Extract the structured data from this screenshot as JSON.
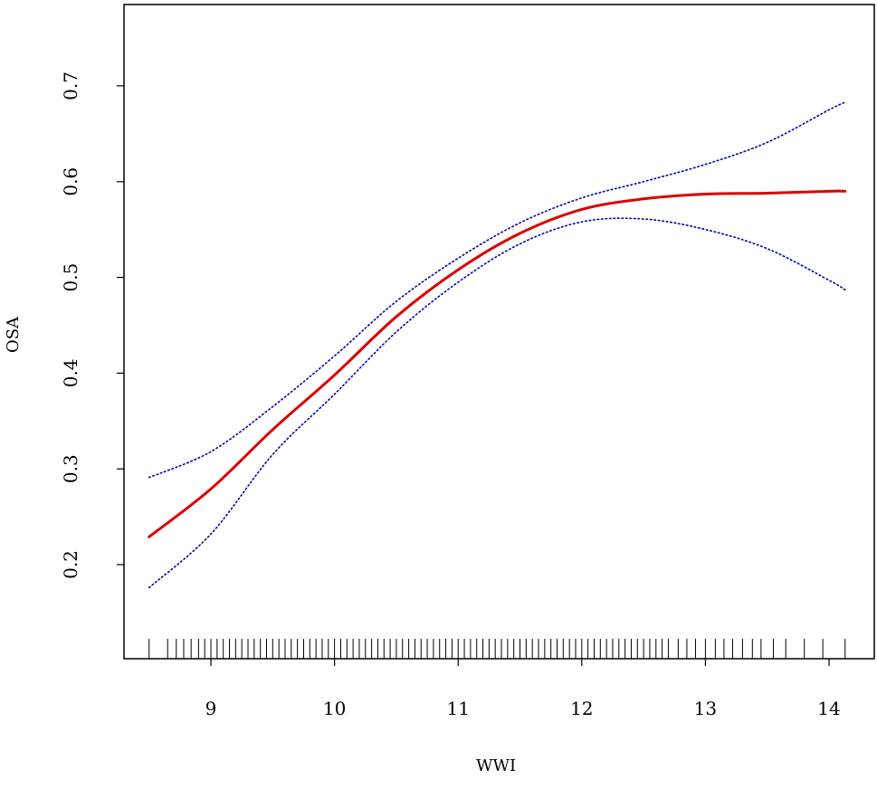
{
  "chart_data": {
    "type": "line",
    "x_label": "WWI",
    "y_label": "OSA",
    "x": [
      8.5,
      9,
      9.5,
      10,
      10.5,
      11,
      11.5,
      12,
      12.5,
      13,
      13.5,
      14,
      14.13
    ],
    "lines": [
      {
        "color": "#dd0000",
        "style": "solid",
        "values": [
          0.229,
          0.279,
          0.341,
          0.398,
          0.459,
          0.508,
          0.546,
          0.571,
          0.582,
          0.587,
          0.588,
          0.59,
          0.59
        ]
      },
      {
        "color": "#0000aa",
        "style": "dotted",
        "values": [
          0.291,
          0.318,
          0.365,
          0.418,
          0.475,
          0.52,
          0.557,
          0.583,
          0.6,
          0.618,
          0.641,
          0.675,
          0.683
        ]
      },
      {
        "color": "#0000aa",
        "style": "dotted",
        "values": [
          0.176,
          0.232,
          0.315,
          0.378,
          0.443,
          0.495,
          0.535,
          0.558,
          0.561,
          0.55,
          0.53,
          0.497,
          0.487
        ]
      }
    ],
    "rug": [
      8.5,
      8.65,
      8.72,
      8.78,
      8.84,
      8.9,
      8.95,
      9.0,
      9.05,
      9.1,
      9.15,
      9.2,
      9.25,
      9.3,
      9.35,
      9.4,
      9.45,
      9.5,
      9.55,
      9.6,
      9.65,
      9.7,
      9.75,
      9.8,
      9.85,
      9.9,
      9.95,
      10.0,
      10.05,
      10.1,
      10.15,
      10.2,
      10.25,
      10.3,
      10.35,
      10.4,
      10.45,
      10.5,
      10.55,
      10.6,
      10.65,
      10.7,
      10.75,
      10.8,
      10.85,
      10.9,
      10.95,
      11.0,
      11.05,
      11.1,
      11.15,
      11.2,
      11.25,
      11.3,
      11.35,
      11.4,
      11.45,
      11.5,
      11.55,
      11.6,
      11.65,
      11.7,
      11.75,
      11.8,
      11.85,
      11.9,
      11.95,
      12.0,
      12.05,
      12.1,
      12.15,
      12.2,
      12.25,
      12.3,
      12.35,
      12.4,
      12.45,
      12.5,
      12.55,
      12.6,
      12.65,
      12.7,
      12.78,
      12.85,
      12.92,
      13.0,
      13.08,
      13.15,
      13.22,
      13.3,
      13.38,
      13.45,
      13.55,
      13.65,
      13.8,
      13.95,
      14.13
    ],
    "xlim": [
      8.297,
      14.366
    ],
    "xticks": [
      9,
      10,
      11,
      12,
      13,
      14
    ],
    "ylim": [
      0.1017,
      0.785
    ],
    "yticks": [
      0.2,
      0.3,
      0.4,
      0.5,
      0.6,
      0.7
    ]
  }
}
